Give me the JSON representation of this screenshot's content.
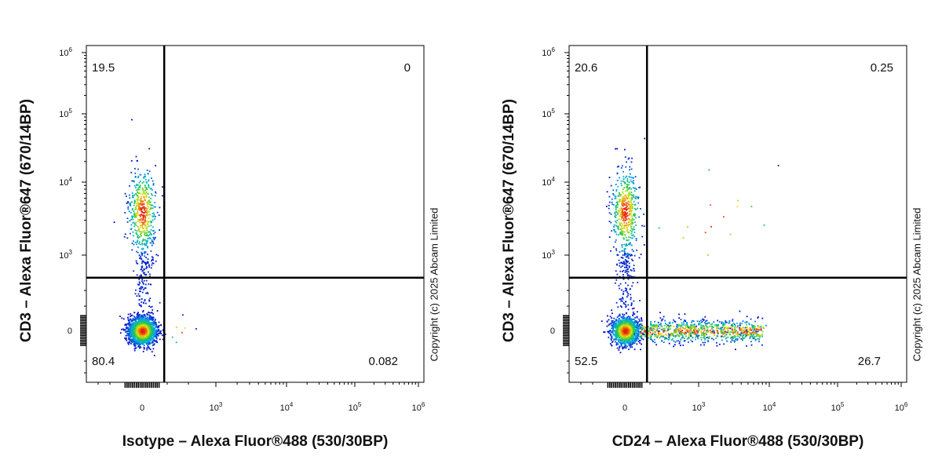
{
  "copyright": "Copyright (c) 2025 Abcam Limited",
  "chart_data": [
    {
      "type": "scatter",
      "subtype": "flow-cytometry-density",
      "xlabel": "Isotype – Alexa Fluor®488 (530/30BP)",
      "ylabel": "CD3 – Alexa Fluor®647 (670/14BP)",
      "x_scale": "biexponential",
      "y_scale": "biexponential",
      "x_ticks": [
        "0",
        "10^3",
        "10^4",
        "10^5",
        "10^6"
      ],
      "y_ticks": [
        "0",
        "10^3",
        "10^4",
        "10^5",
        "10^6"
      ],
      "gate": {
        "x": 300,
        "y": 700
      },
      "quadrants": {
        "top_left": "19.5",
        "top_right": "0",
        "bottom_left": "80.4",
        "bottom_right": "0.082"
      },
      "populations": [
        {
          "x": 0,
          "y": 4000,
          "count": 500
        },
        {
          "x": 0,
          "y": 0,
          "count": 1800
        },
        {
          "x": 500,
          "y": 0,
          "count": 8
        }
      ]
    },
    {
      "type": "scatter",
      "subtype": "flow-cytometry-density",
      "xlabel": "CD24 – Alexa Fluor®488 (530/30BP)",
      "ylabel": "CD3 – Alexa Fluor®647 (670/14BP)",
      "x_scale": "biexponential",
      "y_scale": "biexponential",
      "x_ticks": [
        "0",
        "10^3",
        "10^4",
        "10^5",
        "10^6"
      ],
      "y_ticks": [
        "0",
        "10^3",
        "10^4",
        "10^5",
        "10^6"
      ],
      "gate": {
        "x": 300,
        "y": 700
      },
      "quadrants": {
        "top_left": "20.6",
        "top_right": "0.25",
        "bottom_left": "52.5",
        "bottom_right": "26.7"
      },
      "populations": [
        {
          "x": 0,
          "y": 4000,
          "count": 500
        },
        {
          "x": 0,
          "y": 0,
          "count": 1200
        },
        {
          "x": 1500,
          "y": 0,
          "count": 900
        },
        {
          "x": 1500,
          "y": 3000,
          "count": 15
        }
      ]
    }
  ]
}
